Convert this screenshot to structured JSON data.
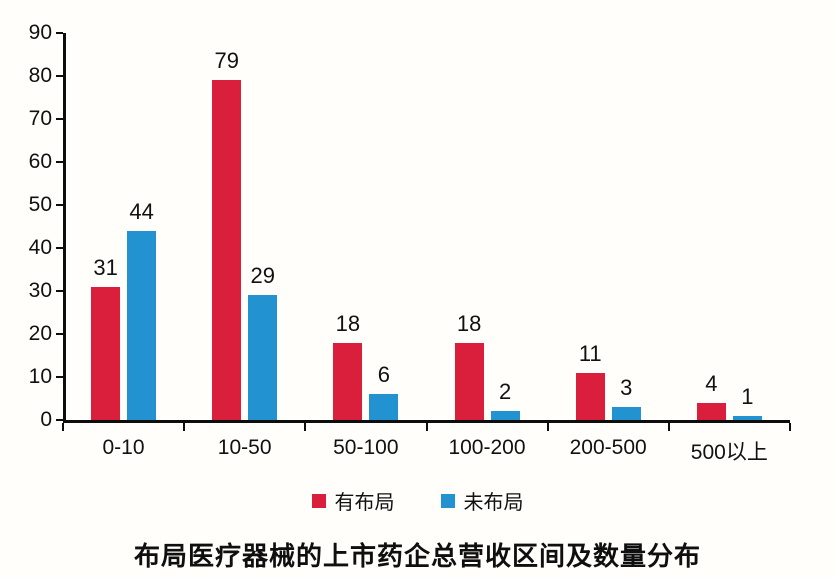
{
  "colors": {
    "series_laid_out": "#d91f3b",
    "series_not_laid_out": "#2292d0",
    "axis": "#0d0d0d",
    "text": "#111111",
    "background": "#fffefa"
  },
  "chart_data": {
    "type": "bar",
    "title": "布局医疗器械的上市药企总营收区间及数量分布",
    "categories": [
      "0-10",
      "10-50",
      "50-100",
      "100-200",
      "200-500",
      "500以上"
    ],
    "series": [
      {
        "name": "有布局",
        "color": "#d91f3b",
        "values": [
          31,
          79,
          18,
          18,
          11,
          4
        ]
      },
      {
        "name": "未布局",
        "color": "#2292d0",
        "values": [
          44,
          29,
          6,
          2,
          3,
          1
        ]
      }
    ],
    "ylim": [
      0,
      90
    ],
    "yticks": [
      0,
      10,
      20,
      30,
      40,
      50,
      60,
      70,
      80,
      90
    ],
    "xlabel": "",
    "ylabel": "",
    "grid": false,
    "legend_position": "bottom",
    "data_labels": true
  }
}
